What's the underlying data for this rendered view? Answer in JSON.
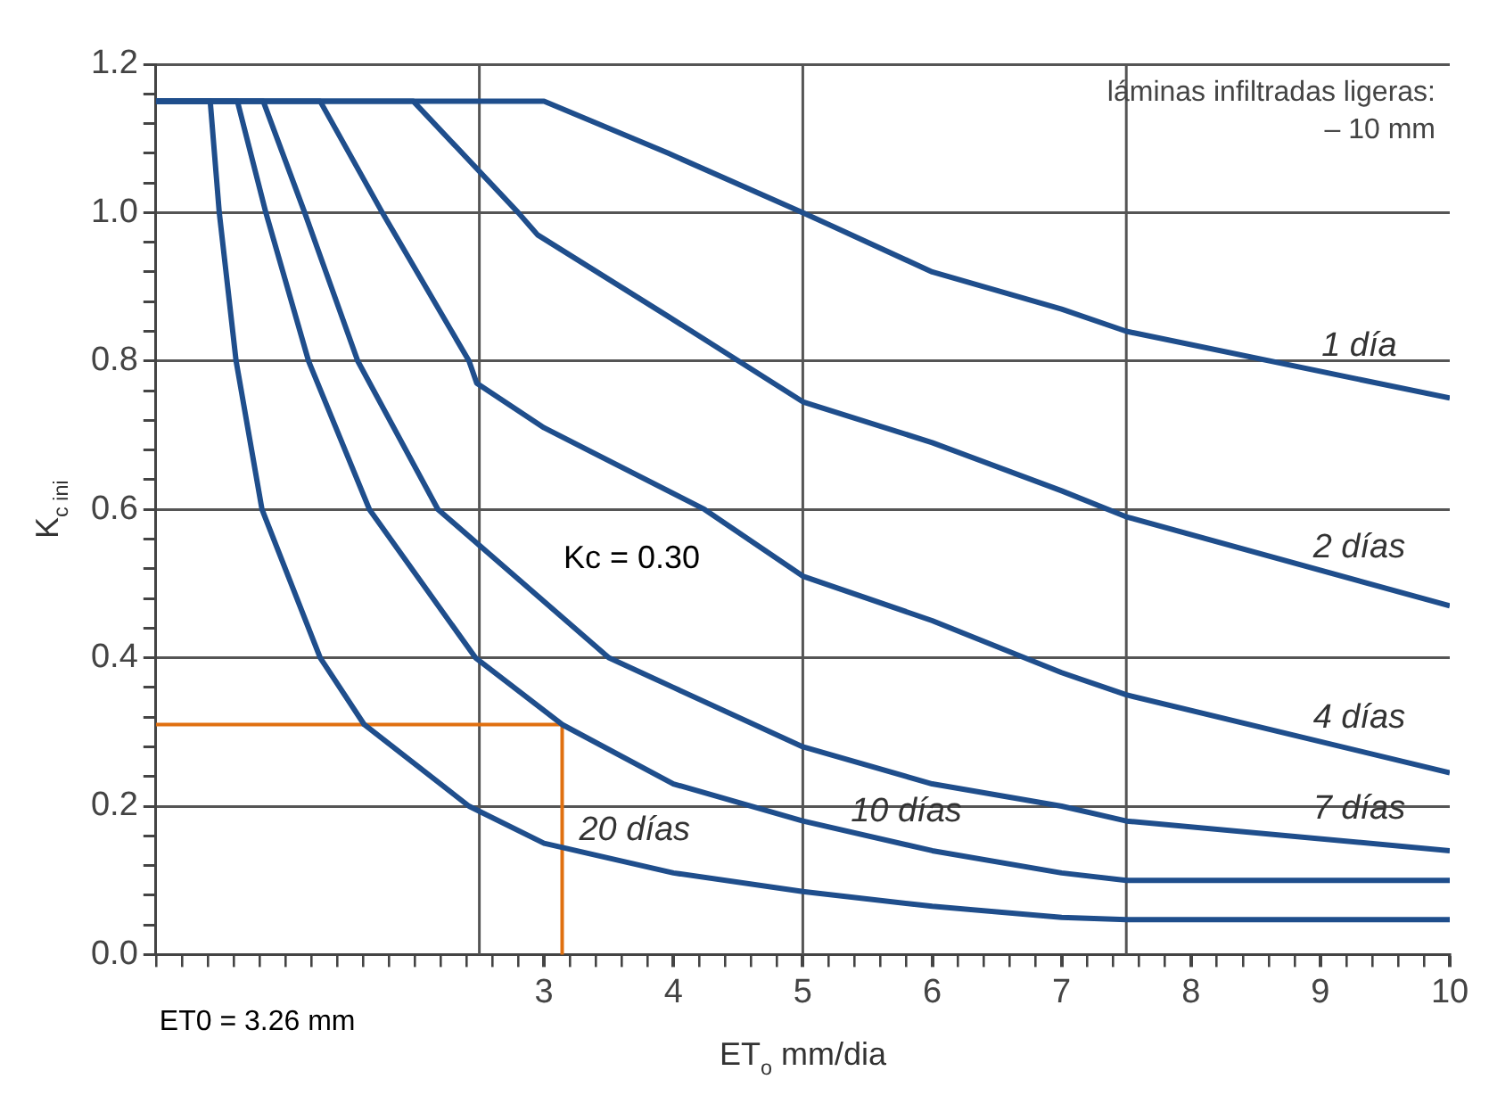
{
  "chart_data": {
    "type": "line",
    "xlabel": "ET$_{o}$ mm/dia",
    "ylabel": "K$_{c ini}$",
    "annotations": [
      "láminas infiltradas ligeras:\n– 10 mm",
      "Kc = 0.30",
      "ET0 = 3.26 mm"
    ],
    "series": [
      {
        "name": "1 día",
        "color": "#1f4e8c",
        "x": [
          0,
          3.0,
          3.96,
          5,
          6,
          7,
          7.5,
          10
        ],
        "values": [
          1.15,
          1.15,
          1.08,
          1.0,
          0.92,
          0.87,
          0.84,
          0.75
        ]
      },
      {
        "name": "2 días",
        "color": "#1f4e8c",
        "x": [
          0,
          1.99,
          2.8,
          2.95,
          3.96,
          5,
          6,
          7,
          7.5,
          10
        ],
        "values": [
          1.15,
          1.15,
          1.0,
          0.97,
          0.86,
          0.745,
          0.69,
          0.625,
          0.59,
          0.47
        ]
      },
      {
        "name": "4 días",
        "color": "#1f4e8c",
        "x": [
          0,
          1.27,
          1.75,
          2.42,
          2.48,
          3.0,
          4.24,
          5,
          6,
          7,
          7.5,
          10
        ],
        "values": [
          1.15,
          1.15,
          1.0,
          0.8,
          0.77,
          0.71,
          0.6,
          0.51,
          0.45,
          0.38,
          0.35,
          0.245
        ]
      },
      {
        "name": "7 días",
        "color": "#1f4e8c",
        "x": [
          0,
          0.83,
          1.15,
          1.56,
          2.18,
          3.5,
          4,
          5,
          6,
          7,
          7.5,
          10
        ],
        "values": [
          1.15,
          1.15,
          1.0,
          0.8,
          0.6,
          0.4,
          0.36,
          0.28,
          0.23,
          0.2,
          0.18,
          0.14
        ]
      },
      {
        "name": "10 días",
        "color": "#1f4e8c",
        "x": [
          0,
          0.63,
          0.85,
          1.18,
          1.65,
          2.47,
          3.14,
          4,
          5,
          6,
          7,
          7.5,
          10
        ],
        "values": [
          1.15,
          1.15,
          1.0,
          0.8,
          0.6,
          0.4,
          0.31,
          0.23,
          0.18,
          0.14,
          0.11,
          0.1,
          0.1
        ]
      },
      {
        "name": "20 días",
        "color": "#1f4e8c",
        "x": [
          0,
          0.42,
          0.49,
          0.62,
          0.82,
          1.27,
          1.61,
          2.42,
          3,
          4,
          5,
          6,
          7,
          7.5,
          10
        ],
        "values": [
          1.15,
          1.15,
          1.0,
          0.8,
          0.6,
          0.4,
          0.31,
          0.2,
          0.15,
          0.11,
          0.085,
          0.065,
          0.05,
          0.047,
          0.047
        ]
      },
      {
        "color": "#e07010",
        "x": [
          0,
          3.14,
          3.14
        ],
        "values": [
          0.31,
          0.31,
          0
        ]
      }
    ],
    "xlim": [
      0,
      10
    ],
    "ylim": [
      0,
      1.2
    ],
    "xticks": [
      {
        "value": 0,
        "label": null
      },
      {
        "value": 0.2,
        "label": null
      },
      {
        "value": 0.4,
        "label": null
      },
      {
        "value": 0.6,
        "label": null
      },
      {
        "value": 0.8,
        "label": null
      },
      {
        "value": 1,
        "label": null
      },
      {
        "value": 1.2,
        "label": null
      },
      {
        "value": 1.4,
        "label": null
      },
      {
        "value": 1.6,
        "label": null
      },
      {
        "value": 1.8,
        "label": null
      },
      {
        "value": 2,
        "label": null
      },
      {
        "value": 2.2,
        "label": null
      },
      {
        "value": 2.4,
        "label": null
      },
      {
        "value": 2.6,
        "label": null
      },
      {
        "value": 2.8,
        "label": null
      },
      3,
      {
        "value": 3.2,
        "label": null
      },
      {
        "value": 3.4,
        "label": null
      },
      {
        "value": 3.6,
        "label": null
      },
      {
        "value": 3.8,
        "label": null
      },
      4,
      {
        "value": 4.2,
        "label": null
      },
      {
        "value": 4.4,
        "label": null
      },
      {
        "value": 4.6,
        "label": null
      },
      {
        "value": 4.8,
        "label": null
      },
      5,
      {
        "value": 5.2,
        "label": null
      },
      {
        "value": 5.4,
        "label": null
      },
      {
        "value": 5.6,
        "label": null
      },
      {
        "value": 5.8,
        "label": null
      },
      6,
      {
        "value": 6.2,
        "label": null
      },
      {
        "value": 6.4,
        "label": null
      },
      {
        "value": 6.6,
        "label": null
      },
      {
        "value": 6.8,
        "label": null
      },
      7,
      {
        "value": 7.2,
        "label": null
      },
      {
        "value": 7.4,
        "label": null
      },
      {
        "value": 7.6,
        "label": null
      },
      {
        "value": 7.8,
        "label": null
      },
      8,
      {
        "value": 8.2,
        "label": null
      },
      {
        "value": 8.4,
        "label": null
      },
      {
        "value": 8.6,
        "label": null
      },
      {
        "value": 8.8,
        "label": null
      },
      9,
      {
        "value": 9.2,
        "label": null
      },
      {
        "value": 9.4,
        "label": null
      },
      {
        "value": 9.6,
        "label": null
      },
      {
        "value": 9.8,
        "label": null
      },
      10
    ],
    "yticks": [
      {
        "value": 0,
        "label": "0.0"
      },
      {
        "value": 0.04,
        "label": null
      },
      {
        "value": 0.08,
        "label": null
      },
      {
        "value": 0.12,
        "label": null
      },
      {
        "value": 0.16,
        "label": null
      },
      {
        "value": 0.2,
        "label": "0.2"
      },
      {
        "value": 0.24,
        "label": null
      },
      {
        "value": 0.28,
        "label": null
      },
      {
        "value": 0.32,
        "label": null
      },
      {
        "value": 0.36,
        "label": null
      },
      {
        "value": 0.4,
        "label": "0.4"
      },
      {
        "value": 0.44,
        "label": null
      },
      {
        "value": 0.48,
        "label": null
      },
      {
        "value": 0.52,
        "label": null
      },
      {
        "value": 0.56,
        "label": null
      },
      {
        "value": 0.6,
        "label": "0.6"
      },
      {
        "value": 0.64,
        "label": null
      },
      {
        "value": 0.68,
        "label": null
      },
      {
        "value": 0.72,
        "label": null
      },
      {
        "value": 0.76,
        "label": null
      },
      {
        "value": 0.8,
        "label": "0.8"
      },
      {
        "value": 0.84,
        "label": null
      },
      {
        "value": 0.88,
        "label": null
      },
      {
        "value": 0.92,
        "label": null
      },
      {
        "value": 0.96,
        "label": null
      },
      {
        "value": 1.0,
        "label": "1.0"
      },
      {
        "value": 1.04,
        "label": null
      },
      {
        "value": 1.08,
        "label": null
      },
      {
        "value": 1.12,
        "label": null
      },
      {
        "value": 1.16,
        "label": null
      },
      {
        "value": 1.2,
        "label": "1.2"
      }
    ],
    "grid": "y",
    "ref_lines": [
      {
        "axis": "x",
        "value": 2.5,
        "color": "#555555"
      },
      {
        "axis": "x",
        "value": 5,
        "color": "#555555"
      },
      {
        "axis": "x",
        "value": 7.5,
        "color": "#555555"
      }
    ],
    "legend": false
  }
}
